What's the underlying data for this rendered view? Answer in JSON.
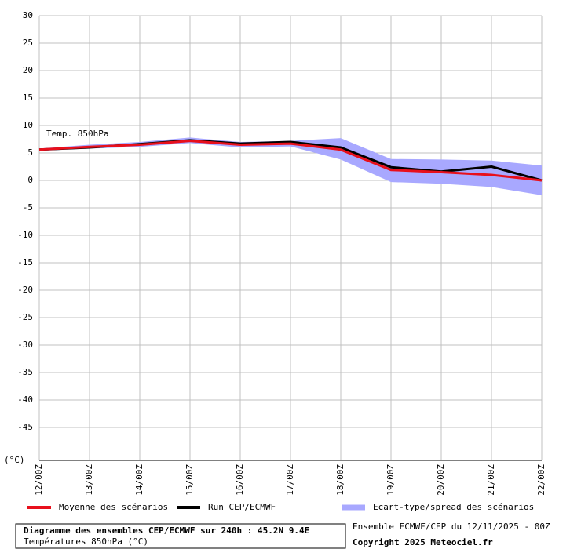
{
  "chart_data": {
    "type": "line",
    "annotation": "Temp. 850hPa",
    "y_unit": "(°C)",
    "categories": [
      "12/00Z",
      "13/00Z",
      "14/00Z",
      "15/00Z",
      "16/00Z",
      "17/00Z",
      "18/00Z",
      "19/00Z",
      "20/00Z",
      "21/00Z",
      "22/00Z"
    ],
    "series": [
      {
        "name": "Moyenne des scénarios",
        "color": "#e8101c",
        "values": [
          5.6,
          6.1,
          6.5,
          7.2,
          6.5,
          6.7,
          5.6,
          1.9,
          1.5,
          1.0,
          0.0
        ]
      },
      {
        "name": "Run CEP/ECMWF",
        "color": "#000000",
        "values": [
          5.6,
          6.0,
          6.6,
          7.3,
          6.7,
          7.0,
          6.0,
          2.4,
          1.6,
          2.5,
          0.0
        ]
      },
      {
        "name": "Ecart-type/spread des scénarios",
        "color": "#a8a8ff",
        "upper": [
          5.8,
          6.5,
          7.0,
          7.8,
          7.0,
          7.2,
          7.7,
          3.9,
          3.8,
          3.6,
          2.7
        ],
        "lower": [
          5.4,
          5.8,
          6.1,
          6.8,
          6.0,
          6.2,
          3.8,
          -0.3,
          -0.6,
          -1.2,
          -2.7
        ]
      }
    ],
    "ylim": [
      -51,
      30
    ],
    "yticks": [
      30,
      25,
      20,
      15,
      10,
      5,
      0,
      -5,
      -10,
      -15,
      -20,
      -25,
      -30,
      -35,
      -40,
      -45
    ],
    "grid": true,
    "footer": {
      "title": "Diagramme des ensembles CEP/ECMWF sur 240h : 45.2N 9.4E",
      "subtitle": "Températures 850hPa (°C)",
      "run": "Ensemble ECMWF/CEP du 12/11/2025 - 00Z",
      "copyright": "Copyright 2025 Meteociel.fr"
    }
  }
}
